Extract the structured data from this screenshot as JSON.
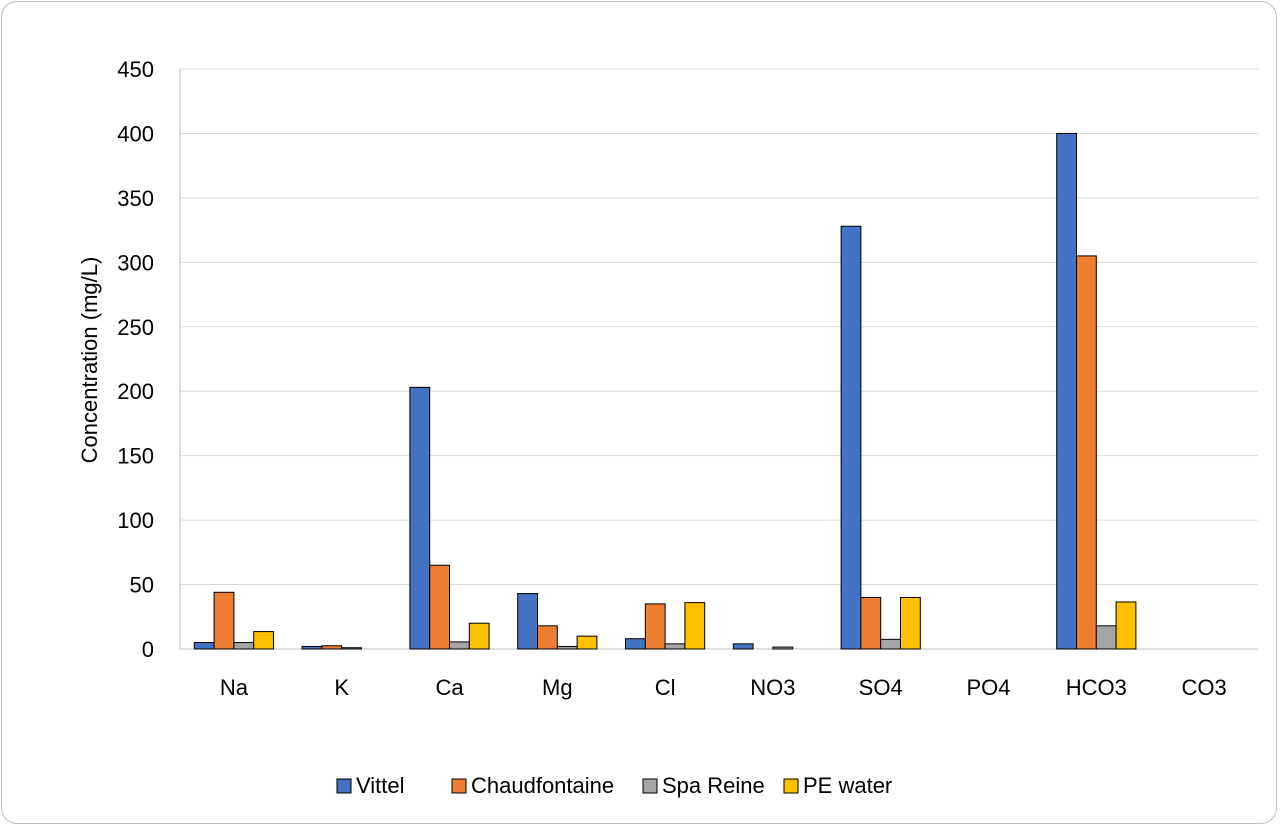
{
  "chart_data": {
    "type": "bar",
    "title": "",
    "xlabel": "",
    "ylabel": "Concentration (mg/L)",
    "ylim": [
      0,
      450
    ],
    "yticks": [
      0,
      50,
      100,
      150,
      200,
      250,
      300,
      350,
      400,
      450
    ],
    "grid": true,
    "legend_position": "bottom",
    "categories": [
      "Na",
      "K",
      "Ca",
      "Mg",
      "Cl",
      "NO3",
      "SO4",
      "PO4",
      "HCO3",
      "CO3"
    ],
    "series": [
      {
        "name": "Vittel",
        "color": "#4472c4",
        "values": [
          5,
          2,
          203,
          43,
          8,
          4,
          328,
          0,
          400,
          0
        ]
      },
      {
        "name": "Chaudfontaine",
        "color": "#ed7d31",
        "values": [
          44,
          2.5,
          65,
          18,
          35,
          0,
          40,
          0,
          305,
          0
        ]
      },
      {
        "name": "Spa Reine",
        "color": "#a5a5a5",
        "values": [
          5,
          1,
          5.5,
          2,
          4,
          1.5,
          7.5,
          0,
          18,
          0
        ]
      },
      {
        "name": "PE water",
        "color": "#ffc000",
        "values": [
          13.5,
          0,
          20,
          10,
          36,
          0,
          40,
          0,
          36.5,
          0
        ]
      }
    ]
  }
}
